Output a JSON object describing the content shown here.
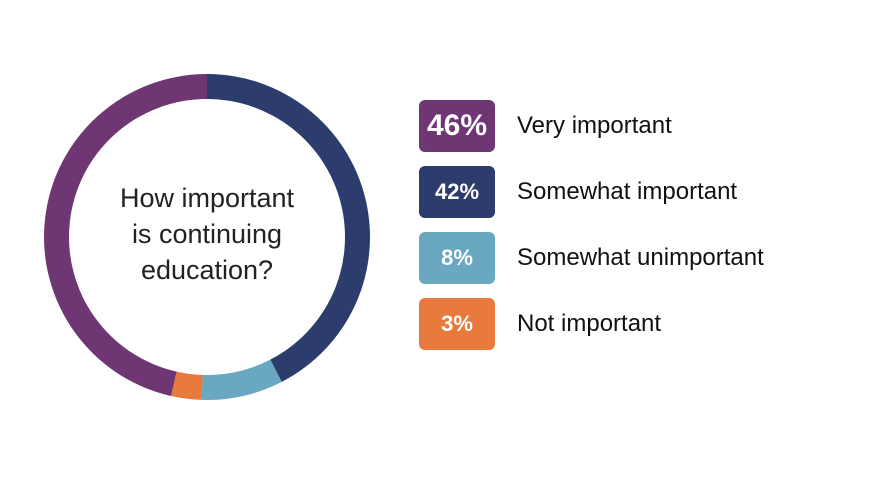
{
  "chart_data": {
    "type": "pie",
    "title_lines": [
      "How important",
      "is continuing",
      "education?"
    ],
    "categories": [
      "Very important",
      "Somewhat important",
      "Somewhat unimportant",
      "Not important"
    ],
    "values": [
      46,
      42,
      8,
      3
    ],
    "labels": [
      "46%",
      "42%",
      "8%",
      "3%"
    ],
    "colors": [
      "#6f3674",
      "#2b3c6d",
      "#6aa8c2",
      "#e77a3c"
    ],
    "legend_position": "right",
    "style": "donut"
  }
}
